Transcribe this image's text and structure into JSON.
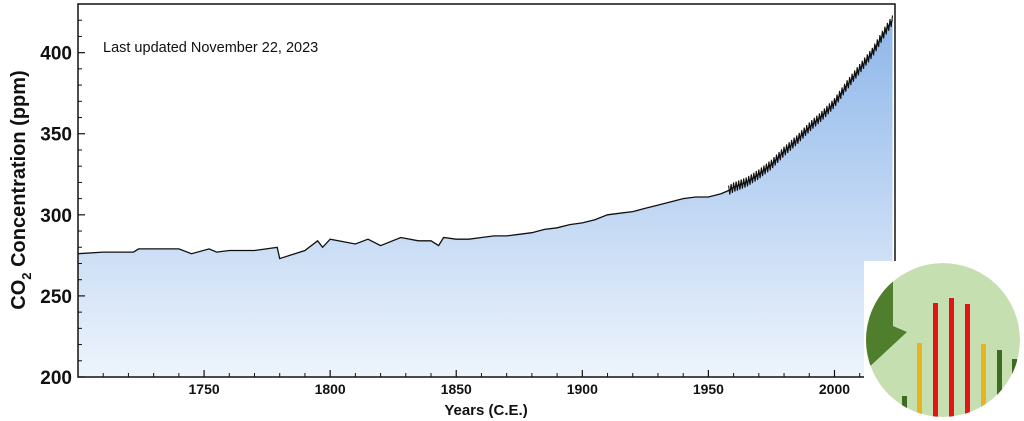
{
  "chart_data": {
    "type": "area",
    "annotation": "Last updated November 22, 2023",
    "xlabel": "Years (C.E.)",
    "ylabel_main": "CO",
    "ylabel_sub": "2",
    "ylabel_rest": " Concentration (ppm)",
    "xlim": [
      1700,
      2024
    ],
    "ylim": [
      200,
      430
    ],
    "x_ticks": [
      1750,
      1800,
      1850,
      1900,
      1950,
      2000
    ],
    "y_ticks": [
      200,
      250,
      300,
      350,
      400
    ],
    "grid": false,
    "fill_colors": [
      "#8eb7ea",
      "#eef4fc"
    ],
    "line_color": "#111111",
    "series": [
      {
        "x": [
          1700,
          1710,
          1722,
          1724,
          1730,
          1740,
          1745,
          1752,
          1755,
          1760,
          1770,
          1779,
          1780,
          1790,
          1795,
          1797,
          1800,
          1810,
          1815,
          1820,
          1828,
          1835,
          1840,
          1843,
          1845,
          1850,
          1855,
          1860,
          1865,
          1870,
          1875,
          1880,
          1885,
          1890,
          1895,
          1900,
          1905,
          1910,
          1915,
          1920,
          1925,
          1930,
          1935,
          1940,
          1945,
          1950,
          1955,
          1958,
          1960,
          1965,
          1970,
          1975,
          1980,
          1985,
          1990,
          1995,
          2000,
          2005,
          2010,
          2015,
          2020,
          2023
        ],
        "values": [
          276,
          277,
          277,
          279,
          279,
          279,
          276,
          279,
          277,
          278,
          278,
          280,
          273,
          278,
          284,
          280,
          285,
          282,
          285,
          281,
          286,
          284,
          284,
          281,
          286,
          285,
          285,
          286,
          287,
          287,
          288,
          289,
          291,
          292,
          294,
          295,
          297,
          300,
          301,
          302,
          304,
          306,
          308,
          310,
          311,
          311,
          313,
          315,
          317,
          320,
          325,
          331,
          339,
          346,
          354,
          361,
          369,
          380,
          390,
          400,
          413,
          420
        ]
      }
    ]
  }
}
